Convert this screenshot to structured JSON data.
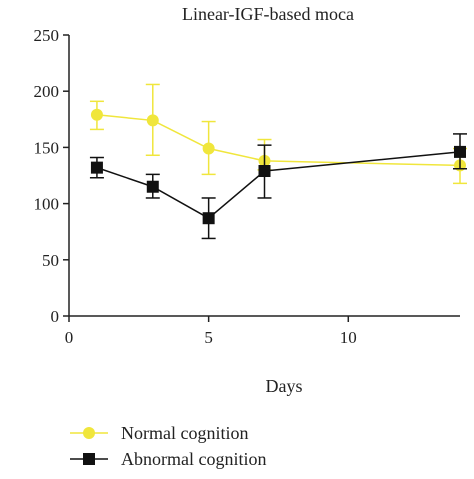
{
  "chart_data": {
    "type": "line",
    "title": "Linear-IGF-based moca",
    "xlabel": "Days",
    "ylabel": "",
    "xlim": [
      0,
      14
    ],
    "ylim": [
      0,
      250
    ],
    "xticks": [
      0,
      5,
      10
    ],
    "yticks": [
      0,
      50,
      100,
      150,
      200,
      250
    ],
    "xtick_labels": [
      "0",
      "5",
      "10"
    ],
    "ytick_labels": [
      "0",
      "50",
      "100",
      "150",
      "200",
      "250"
    ],
    "grid": false,
    "legend_position": "bottom-left",
    "series": [
      {
        "name": "Normal cognition",
        "color": "#f0e63c",
        "marker": "circle",
        "x": [
          1,
          3,
          5,
          7,
          14
        ],
        "y": [
          179,
          174,
          149,
          138,
          134
        ],
        "err_low": [
          166,
          143,
          126,
          130,
          118
        ],
        "err_high": [
          191,
          206,
          173,
          157,
          149
        ]
      },
      {
        "name": "Abnormal cognition",
        "color": "#111111",
        "marker": "square",
        "x": [
          1,
          3,
          5,
          7,
          14
        ],
        "y": [
          132,
          115,
          87,
          129,
          146
        ],
        "err_low": [
          123,
          105,
          69,
          105,
          131
        ],
        "err_high": [
          141,
          126,
          105,
          152,
          162
        ]
      }
    ]
  }
}
